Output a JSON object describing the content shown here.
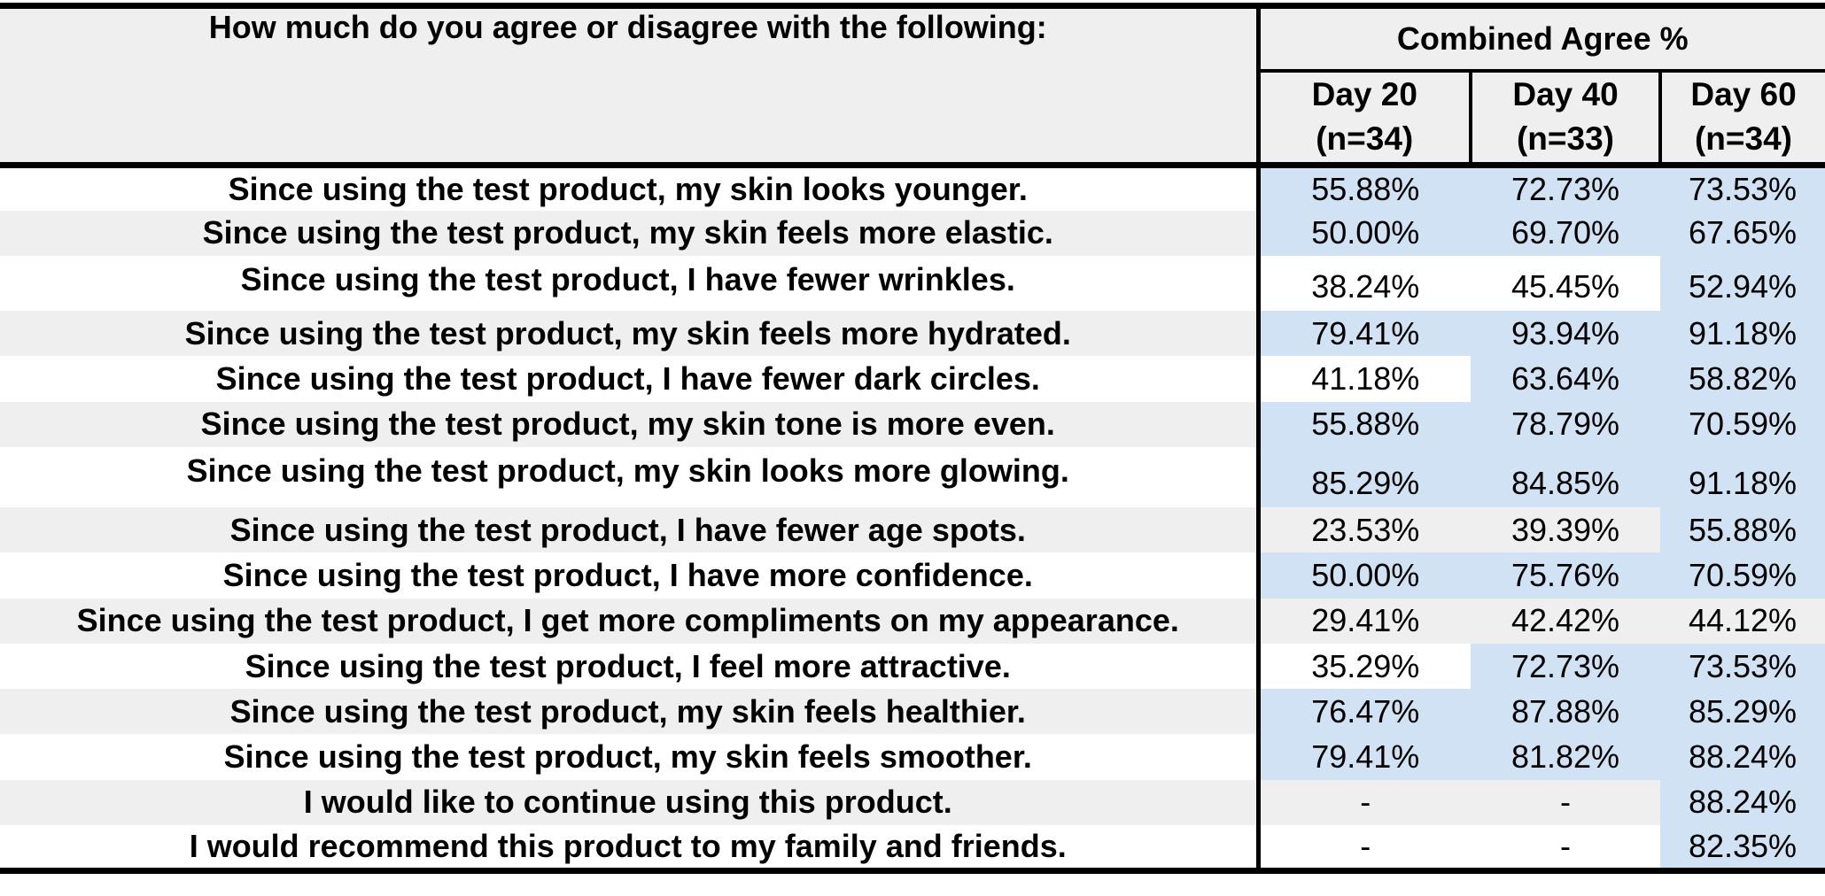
{
  "table": {
    "question_header": "How much do you agree or disagree with the following:",
    "group_header": "Combined Agree %",
    "columns": [
      {
        "day": "Day 20",
        "n": "(n=34)"
      },
      {
        "day": "Day 40",
        "n": "(n=33)"
      },
      {
        "day": "Day 60",
        "n": "(n=34)"
      }
    ],
    "highlight_color": "#d0e2f3",
    "stripe_color": "#efefef",
    "rows": [
      {
        "question": "Since using the test product, my skin looks younger.",
        "values": [
          "55.88%",
          "72.73%",
          "73.53%"
        ],
        "highlighted": [
          true,
          true,
          true
        ]
      },
      {
        "question": "Since using the test product, my skin feels more elastic.",
        "values": [
          "50.00%",
          "69.70%",
          "67.65%"
        ],
        "highlighted": [
          true,
          true,
          true
        ]
      },
      {
        "question": "Since using the test product, I have fewer wrinkles.",
        "values": [
          "38.24%",
          "45.45%",
          "52.94%"
        ],
        "highlighted": [
          false,
          false,
          true
        ]
      },
      {
        "question": "Since using the test product, my skin feels more hydrated.",
        "values": [
          "79.41%",
          "93.94%",
          "91.18%"
        ],
        "highlighted": [
          true,
          true,
          true
        ]
      },
      {
        "question": "Since using the test product, I have fewer dark circles.",
        "values": [
          "41.18%",
          "63.64%",
          "58.82%"
        ],
        "highlighted": [
          false,
          true,
          true
        ]
      },
      {
        "question": "Since using the test product, my skin tone is more even.",
        "values": [
          "55.88%",
          "78.79%",
          "70.59%"
        ],
        "highlighted": [
          true,
          true,
          true
        ]
      },
      {
        "question": "Since using the test product, my skin looks more glowing.",
        "values": [
          "85.29%",
          "84.85%",
          "91.18%"
        ],
        "highlighted": [
          true,
          true,
          true
        ]
      },
      {
        "question": "Since using the test product, I have fewer age spots.",
        "values": [
          "23.53%",
          "39.39%",
          "55.88%"
        ],
        "highlighted": [
          false,
          false,
          true
        ]
      },
      {
        "question": "Since using the test product, I have more confidence.",
        "values": [
          "50.00%",
          "75.76%",
          "70.59%"
        ],
        "highlighted": [
          true,
          true,
          true
        ]
      },
      {
        "question": "Since using the test product, I get more compliments on my appearance.",
        "values": [
          "29.41%",
          "42.42%",
          "44.12%"
        ],
        "highlighted": [
          false,
          false,
          false
        ]
      },
      {
        "question": "Since using the test product, I feel more attractive.",
        "values": [
          "35.29%",
          "72.73%",
          "73.53%"
        ],
        "highlighted": [
          false,
          true,
          true
        ]
      },
      {
        "question": "Since using the test product, my skin feels healthier.",
        "values": [
          "76.47%",
          "87.88%",
          "85.29%"
        ],
        "highlighted": [
          true,
          true,
          true
        ]
      },
      {
        "question": "Since using the test product, my skin feels smoother.",
        "values": [
          "79.41%",
          "81.82%",
          "88.24%"
        ],
        "highlighted": [
          true,
          true,
          true
        ]
      },
      {
        "question": "I would like to continue using this product.",
        "values": [
          "-",
          "-",
          "88.24%"
        ],
        "highlighted": [
          false,
          false,
          true
        ]
      },
      {
        "question": "I would recommend this product to my family and friends.",
        "values": [
          "-",
          "-",
          "82.35%"
        ],
        "highlighted": [
          false,
          false,
          true
        ]
      }
    ]
  }
}
